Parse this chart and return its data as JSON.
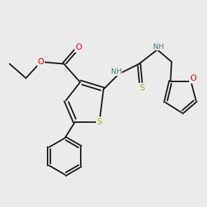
{
  "bg_color": "#ebebeb",
  "bond_color": "#1a1a1a",
  "bond_width": 1.5,
  "atom_colors": {
    "S": "#b8a000",
    "O": "#dd0000",
    "N": "#3a7a7a"
  }
}
